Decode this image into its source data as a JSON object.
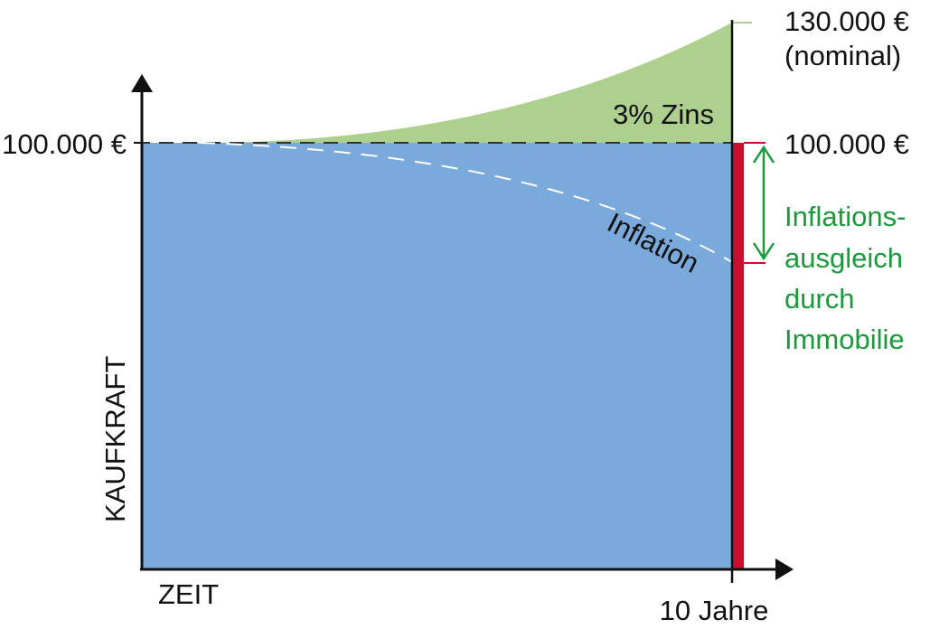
{
  "labels": {
    "y_axis": "KAUFKRAFT",
    "x_axis": "ZEIT",
    "x_end": "10 Jahre",
    "left_value": "100.000 €",
    "right_top": "130.000 €",
    "right_top_note": "(nominal)",
    "right_mid": "100.000 €",
    "interest": "3% Zins",
    "inflation": "Inflation",
    "compensation": [
      "Inflations-",
      "ausgleich",
      "durch",
      "Immobilie"
    ]
  }
}
